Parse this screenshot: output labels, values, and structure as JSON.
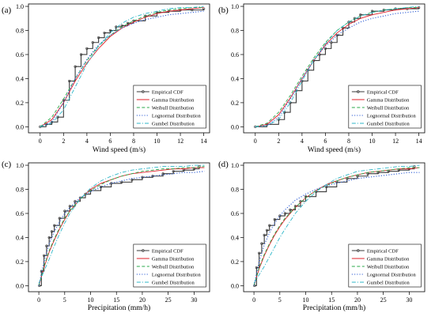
{
  "colors": {
    "empirical": "#3a3a3a",
    "gamma": "#e0202a",
    "weibull": "#2aa84a",
    "lognormal": "#2f5fd6",
    "gumbel": "#2fb7c9"
  },
  "chart_data": [
    {
      "type": "line",
      "panel_label": "(a)",
      "xlabel": "Wind speed (m/s)",
      "ylabel": "",
      "xlim": [
        -1,
        14.5
      ],
      "ylim": [
        -0.05,
        1.02
      ],
      "xticks": [
        0,
        2,
        4,
        6,
        8,
        10,
        12,
        14
      ],
      "yticks": [
        0.0,
        0.2,
        0.4,
        0.6,
        0.8,
        1.0
      ],
      "xtick_labels": [
        "0",
        "2",
        "4",
        "6",
        "8",
        "10",
        "12",
        "14"
      ],
      "ytick_labels": [
        "0.0",
        "0.2",
        "0.4",
        "0.6",
        "0.8",
        "1.0"
      ],
      "grid": false,
      "legend_position": "right",
      "legend": [
        "Empirical CDF",
        "Gamma Distribution",
        "Weibull Distribution",
        "Lognormal Distribution",
        "Gumbel Distribution"
      ],
      "series": [
        {
          "name": "Empirical CDF",
          "style": "step-markers",
          "x": [
            0,
            0.5,
            1,
            1.5,
            2,
            2.5,
            3,
            3.5,
            4,
            4.5,
            5,
            5.5,
            6,
            6.5,
            7,
            7.5,
            8,
            9,
            10,
            11,
            12,
            13,
            14
          ],
          "y": [
            0.0,
            0.02,
            0.04,
            0.08,
            0.22,
            0.38,
            0.5,
            0.6,
            0.65,
            0.7,
            0.74,
            0.78,
            0.8,
            0.83,
            0.84,
            0.86,
            0.88,
            0.92,
            0.95,
            0.96,
            0.97,
            0.97,
            0.98
          ]
        },
        {
          "name": "Gamma Distribution",
          "style": "solid",
          "x": [
            0,
            1,
            2,
            3,
            4,
            5,
            6,
            7,
            8,
            9,
            10,
            11,
            12,
            13,
            14
          ],
          "y": [
            0.0,
            0.06,
            0.2,
            0.38,
            0.53,
            0.65,
            0.75,
            0.82,
            0.87,
            0.91,
            0.94,
            0.96,
            0.97,
            0.98,
            0.99
          ]
        },
        {
          "name": "Weibull Distribution",
          "style": "dashed",
          "x": [
            0,
            1,
            2,
            3,
            4,
            5,
            6,
            7,
            8,
            9,
            10,
            11,
            12,
            13,
            14
          ],
          "y": [
            0.0,
            0.08,
            0.23,
            0.4,
            0.55,
            0.67,
            0.76,
            0.83,
            0.88,
            0.92,
            0.95,
            0.97,
            0.98,
            0.99,
            0.99
          ]
        },
        {
          "name": "Lognormal Distribution",
          "style": "dotted",
          "x": [
            0,
            1,
            2,
            3,
            4,
            5,
            6,
            7,
            8,
            9,
            10,
            11,
            12,
            13,
            14
          ],
          "y": [
            0.0,
            0.04,
            0.2,
            0.4,
            0.56,
            0.68,
            0.76,
            0.82,
            0.86,
            0.89,
            0.91,
            0.93,
            0.94,
            0.95,
            0.96
          ]
        },
        {
          "name": "Gumbel Distribution",
          "style": "dashdot",
          "x": [
            0,
            1,
            2,
            3,
            4,
            5,
            6,
            7,
            8,
            9,
            10,
            11,
            12,
            13,
            14
          ],
          "y": [
            0.0,
            0.03,
            0.14,
            0.33,
            0.52,
            0.67,
            0.78,
            0.86,
            0.91,
            0.94,
            0.96,
            0.98,
            0.99,
            0.99,
            1.0
          ]
        }
      ]
    },
    {
      "type": "line",
      "panel_label": "(b)",
      "xlabel": "Wind speed (m/s)",
      "ylabel": "",
      "xlim": [
        -1,
        14.5
      ],
      "ylim": [
        -0.05,
        1.02
      ],
      "xticks": [
        0,
        2,
        4,
        6,
        8,
        10,
        12,
        14
      ],
      "yticks": [
        0.0,
        0.2,
        0.4,
        0.6,
        0.8,
        1.0
      ],
      "xtick_labels": [
        "0",
        "2",
        "4",
        "6",
        "8",
        "10",
        "12",
        "14"
      ],
      "ytick_labels": [
        "0.0",
        "0.2",
        "0.4",
        "0.6",
        "0.8",
        "1.0"
      ],
      "grid": false,
      "legend_position": "right",
      "legend": [
        "Empirical CDF",
        "Gamma Distribution",
        "Weibull Distribution",
        "Lognormal Distribution",
        "Gumbel Distribution"
      ],
      "series": [
        {
          "name": "Empirical CDF",
          "style": "step-markers",
          "x": [
            0,
            1,
            2,
            2.5,
            3,
            3.5,
            4,
            4.5,
            5,
            5.5,
            6,
            6.5,
            7,
            7.5,
            8,
            8.5,
            9,
            10,
            11,
            12,
            13,
            14
          ],
          "y": [
            0.0,
            0.02,
            0.06,
            0.12,
            0.2,
            0.3,
            0.38,
            0.47,
            0.55,
            0.6,
            0.65,
            0.7,
            0.76,
            0.82,
            0.87,
            0.9,
            0.93,
            0.96,
            0.97,
            0.98,
            0.98,
            0.99
          ]
        },
        {
          "name": "Gamma Distribution",
          "style": "solid",
          "x": [
            0,
            1,
            2,
            3,
            4,
            5,
            6,
            7,
            8,
            9,
            10,
            11,
            12,
            13,
            14
          ],
          "y": [
            0.0,
            0.02,
            0.1,
            0.24,
            0.4,
            0.55,
            0.68,
            0.78,
            0.85,
            0.9,
            0.93,
            0.95,
            0.97,
            0.98,
            0.99
          ]
        },
        {
          "name": "Weibull Distribution",
          "style": "dashed",
          "x": [
            0,
            1,
            2,
            3,
            4,
            5,
            6,
            7,
            8,
            9,
            10,
            11,
            12,
            13,
            14
          ],
          "y": [
            0.0,
            0.03,
            0.12,
            0.26,
            0.42,
            0.57,
            0.7,
            0.8,
            0.87,
            0.92,
            0.95,
            0.97,
            0.98,
            0.99,
            0.99
          ]
        },
        {
          "name": "Lognormal Distribution",
          "style": "dotted",
          "x": [
            0,
            1,
            2,
            3,
            4,
            5,
            6,
            7,
            8,
            9,
            10,
            11,
            12,
            13,
            14
          ],
          "y": [
            0.0,
            0.01,
            0.08,
            0.23,
            0.4,
            0.55,
            0.67,
            0.76,
            0.82,
            0.87,
            0.9,
            0.92,
            0.94,
            0.95,
            0.96
          ]
        },
        {
          "name": "Gumbel Distribution",
          "style": "dashdot",
          "x": [
            0,
            1,
            2,
            3,
            4,
            5,
            6,
            7,
            8,
            9,
            10,
            11,
            12,
            13,
            14
          ],
          "y": [
            0.0,
            0.01,
            0.06,
            0.2,
            0.38,
            0.55,
            0.69,
            0.8,
            0.87,
            0.92,
            0.95,
            0.97,
            0.98,
            0.99,
            1.0
          ]
        }
      ]
    },
    {
      "type": "line",
      "panel_label": "(c)",
      "xlabel": "Precipitation (mm/h)",
      "ylabel": "",
      "xlim": [
        -2,
        33
      ],
      "ylim": [
        -0.05,
        1.02
      ],
      "xticks": [
        0,
        5,
        10,
        15,
        20,
        25,
        30
      ],
      "yticks": [
        0.0,
        0.2,
        0.4,
        0.6,
        0.8,
        1.0
      ],
      "xtick_labels": [
        "0",
        "5",
        "10",
        "15",
        "20",
        "25",
        "30"
      ],
      "ytick_labels": [
        "0.0",
        "0.2",
        "0.4",
        "0.6",
        "0.8",
        "1.0"
      ],
      "grid": false,
      "legend_position": "right",
      "legend": [
        "Empirical CDF",
        "Gamma Distribution",
        "Weibull Distribution",
        "Lognormal Distribution",
        "Gumbel Distribution"
      ],
      "series": [
        {
          "name": "Empirical CDF",
          "style": "step-markers",
          "x": [
            0.1,
            0.5,
            1,
            1.5,
            2,
            2.5,
            3,
            4,
            5,
            6,
            7,
            8,
            9,
            10,
            12,
            14,
            16,
            18,
            20,
            22,
            24,
            26,
            28,
            30,
            31
          ],
          "y": [
            0.0,
            0.12,
            0.25,
            0.33,
            0.4,
            0.45,
            0.5,
            0.56,
            0.62,
            0.66,
            0.7,
            0.73,
            0.76,
            0.79,
            0.82,
            0.85,
            0.86,
            0.88,
            0.9,
            0.91,
            0.93,
            0.95,
            0.96,
            0.97,
            0.99
          ]
        },
        {
          "name": "Gamma Distribution",
          "style": "solid",
          "x": [
            0,
            1,
            2,
            3,
            4,
            5,
            6,
            8,
            10,
            12,
            14,
            16,
            18,
            20,
            22,
            24,
            26,
            28,
            30,
            32
          ],
          "y": [
            0.0,
            0.15,
            0.28,
            0.38,
            0.47,
            0.55,
            0.62,
            0.72,
            0.8,
            0.85,
            0.88,
            0.91,
            0.93,
            0.94,
            0.95,
            0.96,
            0.97,
            0.97,
            0.98,
            0.98
          ]
        },
        {
          "name": "Weibull Distribution",
          "style": "dashed",
          "x": [
            0,
            1,
            2,
            3,
            4,
            5,
            6,
            8,
            10,
            12,
            14,
            16,
            18,
            20,
            22,
            24,
            26,
            28,
            30,
            32
          ],
          "y": [
            0.0,
            0.16,
            0.29,
            0.39,
            0.48,
            0.56,
            0.62,
            0.72,
            0.79,
            0.84,
            0.88,
            0.91,
            0.93,
            0.95,
            0.96,
            0.97,
            0.97,
            0.98,
            0.98,
            0.99
          ]
        },
        {
          "name": "Lognormal Distribution",
          "style": "dotted",
          "x": [
            0,
            1,
            2,
            3,
            4,
            5,
            6,
            8,
            10,
            12,
            14,
            16,
            18,
            20,
            22,
            24,
            26,
            28,
            30,
            32
          ],
          "y": [
            0.0,
            0.2,
            0.35,
            0.45,
            0.53,
            0.6,
            0.65,
            0.73,
            0.78,
            0.82,
            0.85,
            0.87,
            0.89,
            0.9,
            0.91,
            0.92,
            0.93,
            0.94,
            0.94,
            0.95
          ]
        },
        {
          "name": "Gumbel Distribution",
          "style": "dashdot",
          "x": [
            0,
            1,
            2,
            3,
            4,
            5,
            6,
            8,
            10,
            12,
            14,
            16,
            18,
            20,
            22,
            24,
            26,
            28,
            30,
            32
          ],
          "y": [
            0.02,
            0.12,
            0.22,
            0.33,
            0.43,
            0.52,
            0.6,
            0.72,
            0.81,
            0.87,
            0.91,
            0.94,
            0.96,
            0.97,
            0.98,
            0.99,
            0.99,
            0.99,
            1.0,
            1.0
          ]
        }
      ]
    },
    {
      "type": "line",
      "panel_label": "(d)",
      "xlabel": "Precipitation (mm/h)",
      "ylabel": "",
      "xlim": [
        -2,
        33
      ],
      "ylim": [
        -0.05,
        1.02
      ],
      "xticks": [
        0,
        5,
        10,
        15,
        20,
        25,
        30
      ],
      "yticks": [
        0.0,
        0.2,
        0.4,
        0.6,
        0.8,
        1.0
      ],
      "xtick_labels": [
        "0",
        "5",
        "10",
        "15",
        "20",
        "25",
        "30"
      ],
      "ytick_labels": [
        "0.0",
        "0.2",
        "0.4",
        "0.6",
        "0.8",
        "1.0"
      ],
      "grid": false,
      "legend_position": "right",
      "legend": [
        "Empirical CDF",
        "Gamma Distribution",
        "Weibull Distribution",
        "Lognormal Distribution",
        "Gumbel Distribution"
      ],
      "series": [
        {
          "name": "Empirical CDF",
          "style": "step-markers",
          "x": [
            0.1,
            0.5,
            1,
            1.5,
            2,
            2.5,
            3,
            4,
            5,
            6,
            7,
            8,
            9,
            10,
            12,
            14,
            16,
            18,
            20,
            22,
            24,
            26,
            28,
            30,
            31
          ],
          "y": [
            0.0,
            0.15,
            0.27,
            0.35,
            0.42,
            0.46,
            0.5,
            0.55,
            0.58,
            0.6,
            0.63,
            0.66,
            0.7,
            0.74,
            0.78,
            0.82,
            0.86,
            0.89,
            0.91,
            0.93,
            0.94,
            0.95,
            0.96,
            0.97,
            0.99
          ]
        },
        {
          "name": "Gamma Distribution",
          "style": "solid",
          "x": [
            0,
            1,
            2,
            3,
            4,
            5,
            6,
            8,
            10,
            12,
            14,
            16,
            18,
            20,
            22,
            24,
            26,
            28,
            30,
            32
          ],
          "y": [
            0.0,
            0.14,
            0.25,
            0.34,
            0.42,
            0.49,
            0.55,
            0.65,
            0.73,
            0.79,
            0.84,
            0.87,
            0.9,
            0.92,
            0.94,
            0.95,
            0.96,
            0.97,
            0.97,
            0.98
          ]
        },
        {
          "name": "Weibull Distribution",
          "style": "dashed",
          "x": [
            0,
            1,
            2,
            3,
            4,
            5,
            6,
            8,
            10,
            12,
            14,
            16,
            18,
            20,
            22,
            24,
            26,
            28,
            30,
            32
          ],
          "y": [
            0.0,
            0.15,
            0.26,
            0.35,
            0.43,
            0.5,
            0.56,
            0.65,
            0.73,
            0.79,
            0.83,
            0.87,
            0.9,
            0.92,
            0.94,
            0.95,
            0.96,
            0.97,
            0.98,
            0.98
          ]
        },
        {
          "name": "Lognormal Distribution",
          "style": "dotted",
          "x": [
            0,
            1,
            2,
            3,
            4,
            5,
            6,
            8,
            10,
            12,
            14,
            16,
            18,
            20,
            22,
            24,
            26,
            28,
            30,
            32
          ],
          "y": [
            0.0,
            0.2,
            0.34,
            0.44,
            0.52,
            0.58,
            0.63,
            0.71,
            0.76,
            0.8,
            0.83,
            0.85,
            0.87,
            0.89,
            0.9,
            0.91,
            0.92,
            0.93,
            0.94,
            0.94
          ]
        },
        {
          "name": "Gumbel Distribution",
          "style": "dashdot",
          "x": [
            0,
            1,
            2,
            3,
            4,
            5,
            6,
            8,
            10,
            12,
            14,
            16,
            18,
            20,
            22,
            24,
            26,
            28,
            30,
            32
          ],
          "y": [
            0.02,
            0.09,
            0.16,
            0.24,
            0.32,
            0.4,
            0.47,
            0.6,
            0.7,
            0.78,
            0.84,
            0.89,
            0.92,
            0.95,
            0.96,
            0.97,
            0.98,
            0.99,
            0.99,
            1.0
          ]
        }
      ]
    }
  ]
}
